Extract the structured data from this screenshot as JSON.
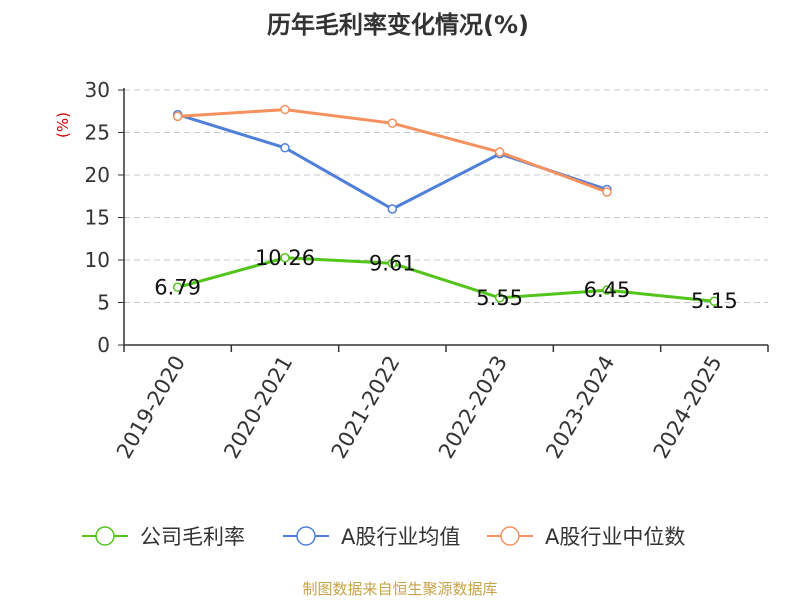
{
  "chart_data": {
    "type": "line",
    "title": "历年毛利率变化情况(%)",
    "ylabel": "(%)",
    "xlabel": "",
    "categories": [
      "2019-2020",
      "2020-2021",
      "2021-2022",
      "2022-2023",
      "2023-2024",
      "2024-2025"
    ],
    "ylim": [
      0,
      30
    ],
    "yticks": [
      0,
      5,
      10,
      15,
      20,
      25,
      30
    ],
    "grid": true,
    "legend_position": "bottom",
    "series": [
      {
        "name": "公司毛利率",
        "color": "#52c41a",
        "values": [
          6.79,
          10.26,
          9.61,
          5.55,
          6.45,
          5.15
        ],
        "labels": [
          "6.79",
          "10.26",
          "9.61",
          "5.55",
          "6.45",
          "5.15"
        ]
      },
      {
        "name": "A股行业均值",
        "color": "#4e7fd9",
        "values": [
          27.1,
          23.2,
          16.0,
          22.5,
          18.3,
          null
        ]
      },
      {
        "name": "A股行业中位数",
        "color": "#f4915f",
        "values": [
          26.9,
          27.7,
          26.1,
          22.7,
          18.0,
          null
        ]
      }
    ]
  },
  "footer": {
    "source": "制图数据来自恒生聚源数据库"
  },
  "colors": {
    "title": "#333333",
    "ylabel": "#cc0000",
    "footer": "#c7a34a",
    "axis": "#333333",
    "grid": "#c8c8c8"
  }
}
